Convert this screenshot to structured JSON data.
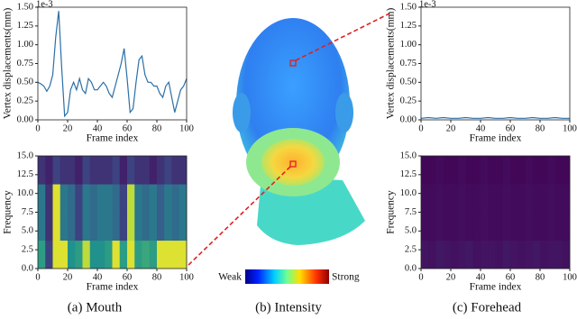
{
  "chart_data": [
    {
      "type": "line",
      "offset_label": "1e-3",
      "xlabel": "Frame index",
      "ylabel": "Vertex displacements(mm)",
      "color": "#2a6fa8",
      "x": [
        0,
        2,
        4,
        6,
        8,
        10,
        12,
        14,
        16,
        18,
        20,
        22,
        24,
        26,
        28,
        30,
        32,
        34,
        36,
        38,
        40,
        42,
        44,
        46,
        48,
        50,
        52,
        54,
        56,
        58,
        60,
        62,
        64,
        66,
        68,
        70,
        72,
        74,
        76,
        78,
        80,
        82,
        84,
        86,
        88,
        90,
        92,
        94,
        96,
        98,
        100
      ],
      "values": [
        0.5,
        0.48,
        0.45,
        0.38,
        0.45,
        0.6,
        1.1,
        1.45,
        0.7,
        0.05,
        0.1,
        0.4,
        0.5,
        0.4,
        0.55,
        0.4,
        0.35,
        0.55,
        0.5,
        0.4,
        0.4,
        0.45,
        0.5,
        0.45,
        0.35,
        0.3,
        0.45,
        0.6,
        0.75,
        0.95,
        0.55,
        0.1,
        0.15,
        0.5,
        0.8,
        0.85,
        0.6,
        0.5,
        0.5,
        0.45,
        0.45,
        0.35,
        0.3,
        0.45,
        0.5,
        0.3,
        0.1,
        0.25,
        0.4,
        0.45,
        0.55
      ],
      "xlim": [
        0,
        100
      ],
      "xticks": [
        0,
        20,
        40,
        60,
        80,
        100
      ],
      "ylim": [
        0,
        1.5
      ],
      "yticks": [
        {
          "value": 0,
          "label": "0.00"
        },
        {
          "value": 0.25,
          "label": "0.25"
        },
        {
          "value": 0.5,
          "label": "0.50"
        },
        {
          "value": 0.75,
          "label": "0.75"
        },
        {
          "value": 1,
          "label": "1.00"
        },
        {
          "value": 1.25,
          "label": "1.25"
        },
        {
          "value": 1.5,
          "label": "1.50"
        }
      ]
    },
    {
      "type": "heatmap",
      "xlabel": "Frame index",
      "ylabel": "Frequency",
      "x_edges": [
        0,
        5,
        10,
        15,
        20,
        25,
        30,
        35,
        40,
        45,
        50,
        55,
        60,
        65,
        70,
        75,
        80,
        85,
        90,
        95,
        100
      ],
      "y_edges": [
        0,
        3.75,
        7.5,
        11.25,
        15
      ],
      "z": [
        [
          0.55,
          0.2,
          0.95,
          0.95,
          0.5,
          0.55,
          0.9,
          0.5,
          0.5,
          0.55,
          0.95,
          0.55,
          0.95,
          0.55,
          0.6,
          0.55,
          0.95,
          0.95,
          0.95,
          0.95
        ],
        [
          0.4,
          0.15,
          0.95,
          0.4,
          0.35,
          0.2,
          0.4,
          0.35,
          0.4,
          0.4,
          0.35,
          0.2,
          0.9,
          0.4,
          0.35,
          0.4,
          0.3,
          0.4,
          0.35,
          0.4
        ],
        [
          0.4,
          0.15,
          0.95,
          0.4,
          0.35,
          0.2,
          0.4,
          0.35,
          0.4,
          0.4,
          0.35,
          0.2,
          0.9,
          0.4,
          0.35,
          0.4,
          0.3,
          0.4,
          0.35,
          0.4
        ],
        [
          0.15,
          0.1,
          0.2,
          0.15,
          0.15,
          0.1,
          0.2,
          0.15,
          0.15,
          0.15,
          0.2,
          0.1,
          0.2,
          0.15,
          0.15,
          0.1,
          0.15,
          0.2,
          0.15,
          0.15
        ]
      ],
      "xlim": [
        0,
        100
      ],
      "xticks": [
        0,
        20,
        40,
        60,
        80,
        100
      ],
      "ylim": [
        0,
        15
      ],
      "yticks": [
        {
          "value": 0,
          "label": "0.0"
        },
        {
          "value": 2.5,
          "label": "2.5"
        },
        {
          "value": 5,
          "label": "5.0"
        },
        {
          "value": 7.5,
          "label": "7.5"
        },
        {
          "value": 10,
          "label": "10.0"
        },
        {
          "value": 12.5,
          "label": "12.5"
        },
        {
          "value": 15,
          "label": "15.0"
        }
      ]
    },
    {
      "type": "line",
      "offset_label": "1e-3",
      "xlabel": "Frame index",
      "ylabel": "Vertex displacements(mm)",
      "color": "#2a6fa8",
      "x": [
        0,
        5,
        10,
        15,
        20,
        25,
        30,
        35,
        40,
        45,
        50,
        55,
        60,
        65,
        70,
        75,
        80,
        85,
        90,
        95,
        100
      ],
      "values": [
        0.02,
        0.03,
        0.02,
        0.03,
        0.02,
        0.02,
        0.03,
        0.02,
        0.02,
        0.03,
        0.02,
        0.02,
        0.03,
        0.02,
        0.02,
        0.03,
        0.02,
        0.02,
        0.03,
        0.02,
        0.02
      ],
      "xlim": [
        0,
        100
      ],
      "xticks": [
        0,
        20,
        40,
        60,
        80,
        100
      ],
      "ylim": [
        0,
        1.5
      ],
      "yticks": [
        {
          "value": 0,
          "label": "0.00"
        },
        {
          "value": 0.25,
          "label": "0.25"
        },
        {
          "value": 0.5,
          "label": "0.50"
        },
        {
          "value": 0.75,
          "label": "0.75"
        },
        {
          "value": 1,
          "label": "1.00"
        },
        {
          "value": 1.25,
          "label": "1.25"
        },
        {
          "value": 1.5,
          "label": "1.50"
        }
      ]
    },
    {
      "type": "heatmap",
      "xlabel": "Frame index",
      "ylabel": "Frequency",
      "x_edges": [
        0,
        5,
        10,
        15,
        20,
        25,
        30,
        35,
        40,
        45,
        50,
        55,
        60,
        65,
        70,
        75,
        80,
        85,
        90,
        95,
        100
      ],
      "y_edges": [
        0,
        3.75,
        7.5,
        11.25,
        15
      ],
      "z": [
        [
          0.06,
          0.05,
          0.07,
          0.06,
          0.05,
          0.06,
          0.07,
          0.05,
          0.06,
          0.06,
          0.05,
          0.07,
          0.06,
          0.05,
          0.06,
          0.07,
          0.05,
          0.06,
          0.06,
          0.05
        ],
        [
          0.03,
          0.03,
          0.04,
          0.03,
          0.03,
          0.04,
          0.03,
          0.03,
          0.04,
          0.03,
          0.03,
          0.04,
          0.03,
          0.03,
          0.04,
          0.03,
          0.03,
          0.04,
          0.03,
          0.03
        ],
        [
          0.03,
          0.03,
          0.04,
          0.03,
          0.03,
          0.04,
          0.03,
          0.03,
          0.04,
          0.03,
          0.03,
          0.04,
          0.03,
          0.03,
          0.04,
          0.03,
          0.03,
          0.04,
          0.03,
          0.03
        ],
        [
          0.02,
          0.02,
          0.03,
          0.02,
          0.02,
          0.03,
          0.02,
          0.02,
          0.03,
          0.02,
          0.02,
          0.03,
          0.02,
          0.02,
          0.03,
          0.02,
          0.02,
          0.03,
          0.02,
          0.02
        ]
      ],
      "xlim": [
        0,
        100
      ],
      "xticks": [
        0,
        20,
        40,
        60,
        80,
        100
      ],
      "ylim": [
        0,
        15
      ],
      "yticks": [
        {
          "value": 0,
          "label": "0.0"
        },
        {
          "value": 2.5,
          "label": "2.5"
        },
        {
          "value": 5,
          "label": "5.0"
        },
        {
          "value": 7.5,
          "label": "7.5"
        },
        {
          "value": 10,
          "label": "10.0"
        },
        {
          "value": 12.5,
          "label": "12.5"
        },
        {
          "value": 15,
          "label": "15.0"
        }
      ]
    }
  ],
  "colorbar": {
    "low": "Weak",
    "high": "Strong"
  },
  "captions": [
    "(a) Mouth",
    "(b) Intensity",
    "(c) Forehead"
  ]
}
